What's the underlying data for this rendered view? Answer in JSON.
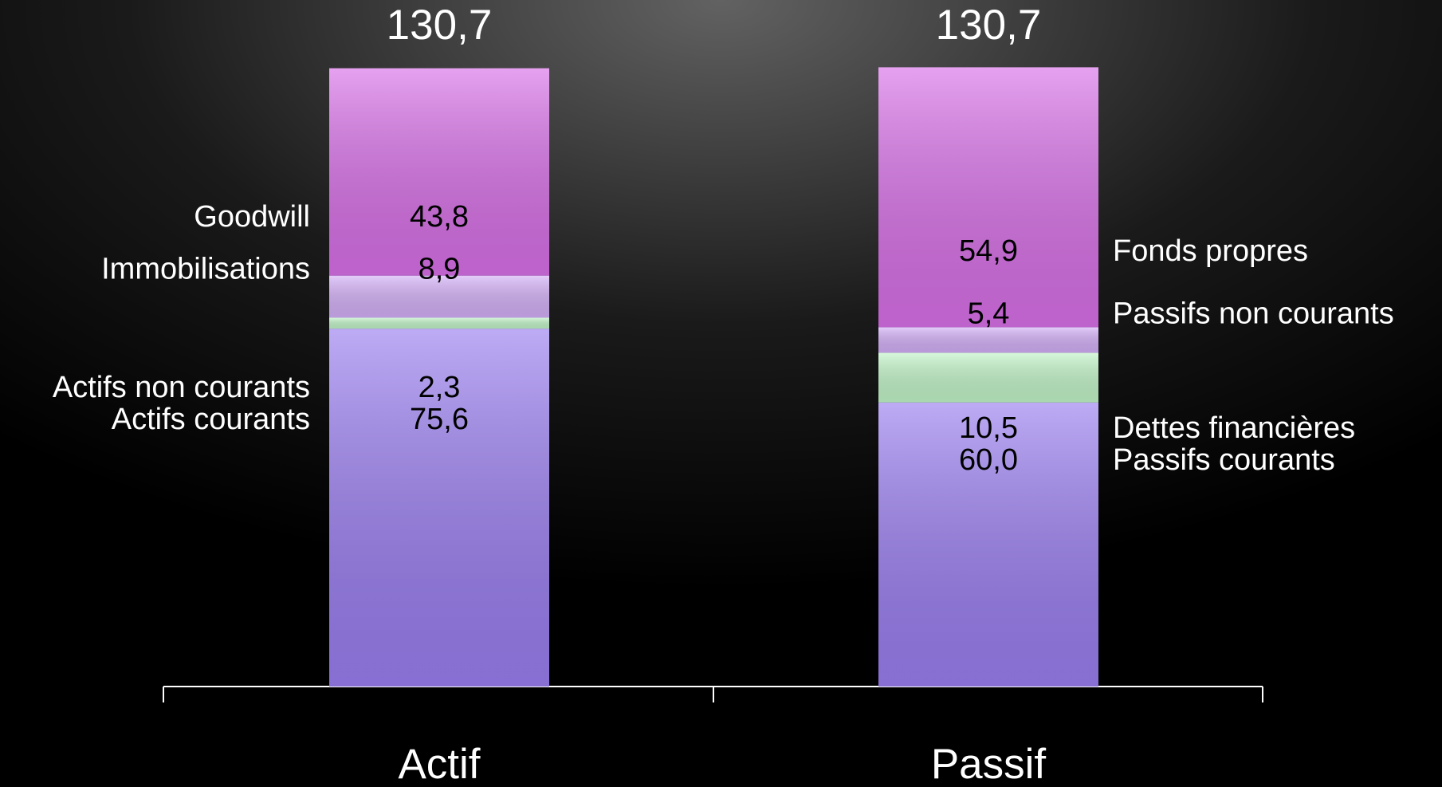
{
  "chart_data": {
    "type": "stacked_bar",
    "categories": [
      "Actif",
      "Passif"
    ],
    "totals": [
      130.7,
      130.7
    ],
    "total_labels": [
      "130,7",
      "130,7"
    ],
    "bars": [
      {
        "label_side": "left",
        "segments": [
          {
            "name": "Actifs courants",
            "value": 75.6,
            "value_label": "75,6",
            "color": "#9a7ef0"
          },
          {
            "name": "Actifs non courants",
            "value": 2.3,
            "value_label": "2,3",
            "color": "#c2f5c8"
          },
          {
            "name": "Immobilisations",
            "value": 8.9,
            "value_label": "8,9",
            "color": "#d4b0f8"
          },
          {
            "name": "Goodwill",
            "value": 43.8,
            "value_label": "43,8",
            "color": "#d870e8"
          }
        ]
      },
      {
        "label_side": "right",
        "segments": [
          {
            "name": "Passifs courants",
            "value": 60.0,
            "value_label": "60,0",
            "color": "#9a7ef0"
          },
          {
            "name": "Dettes financières",
            "value": 10.5,
            "value_label": "10,5",
            "color": "#c2f5c8"
          },
          {
            "name": "Passifs non courants",
            "value": 5.4,
            "value_label": "5,4",
            "color": "#d4b0f8"
          },
          {
            "name": "Fonds propres",
            "value": 54.9,
            "value_label": "54,9",
            "color": "#d870e8"
          }
        ]
      }
    ]
  }
}
